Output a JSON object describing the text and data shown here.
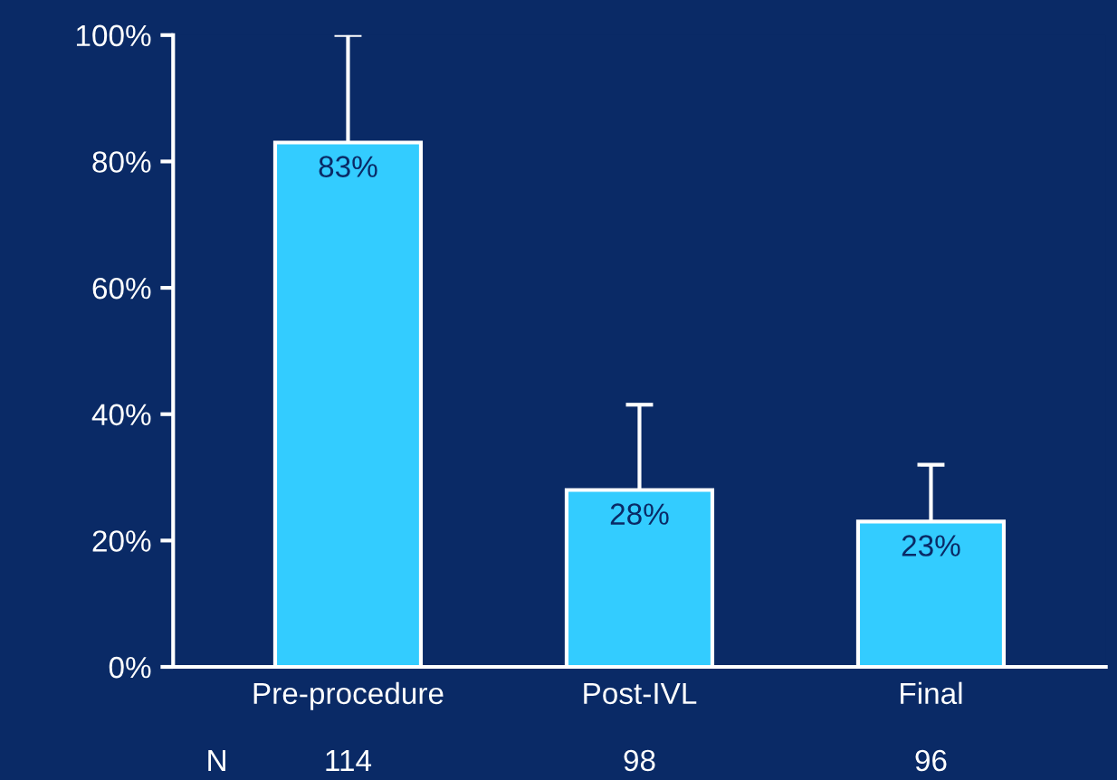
{
  "chart_data": {
    "type": "bar",
    "categories": [
      "Pre-procedure",
      "Post-IVL",
      "Final"
    ],
    "values": [
      83,
      28,
      23
    ],
    "color": "#33ccff",
    "errors": [
      [
        83,
        100
      ],
      [
        28,
        41.5
      ],
      [
        23,
        32
      ]
    ],
    "value_labels": [
      "83%",
      "28%",
      "23%"
    ],
    "ylim": [
      0,
      100
    ],
    "yticks": [
      {
        "value": 0,
        "label": "0%"
      },
      {
        "value": 20,
        "label": "20%"
      },
      {
        "value": 40,
        "label": "40%"
      },
      {
        "value": 60,
        "label": "60%"
      },
      {
        "value": 80,
        "label": "80%"
      },
      {
        "value": 100,
        "label": "100%"
      }
    ],
    "grid": false,
    "annotations": [
      "N",
      "114",
      "98",
      "96"
    ]
  }
}
